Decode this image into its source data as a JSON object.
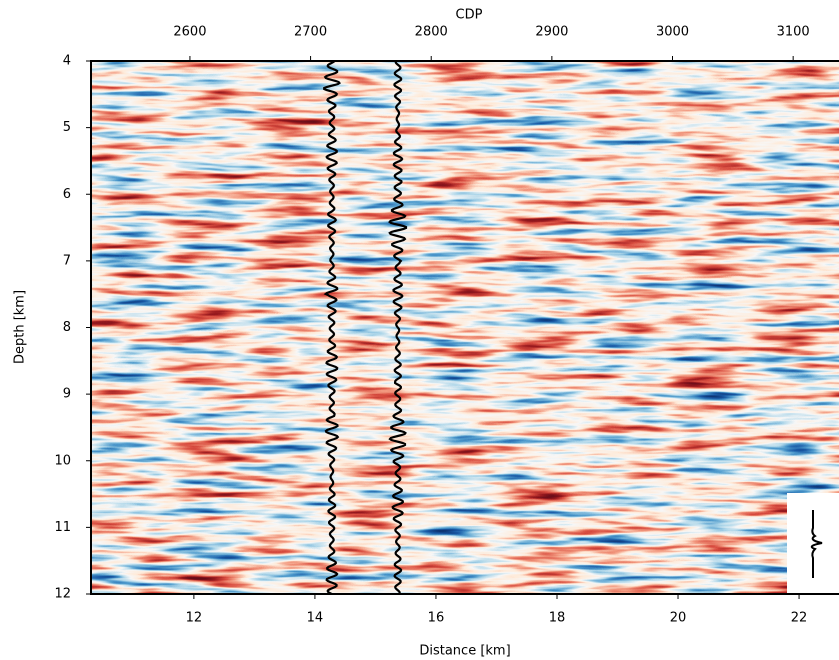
{
  "chart_data": {
    "type": "image",
    "xlabel": "Distance [km]",
    "ylabel": "Depth [km]",
    "x2label": "CDP",
    "xlim": [
      10.3,
      22.66
    ],
    "xticks": [
      12,
      14,
      16,
      18,
      20,
      22
    ],
    "x2lim": [
      2518,
      3138
    ],
    "x2ticks": [
      2600,
      2700,
      2800,
      2900,
      3000,
      3100
    ],
    "ylim": [
      12,
      4
    ],
    "yticks": [
      4,
      5,
      6,
      7,
      8,
      9,
      10,
      11,
      12
    ],
    "lines_x": [
      14.28,
      15.37
    ],
    "line_color": "#000000"
  }
}
